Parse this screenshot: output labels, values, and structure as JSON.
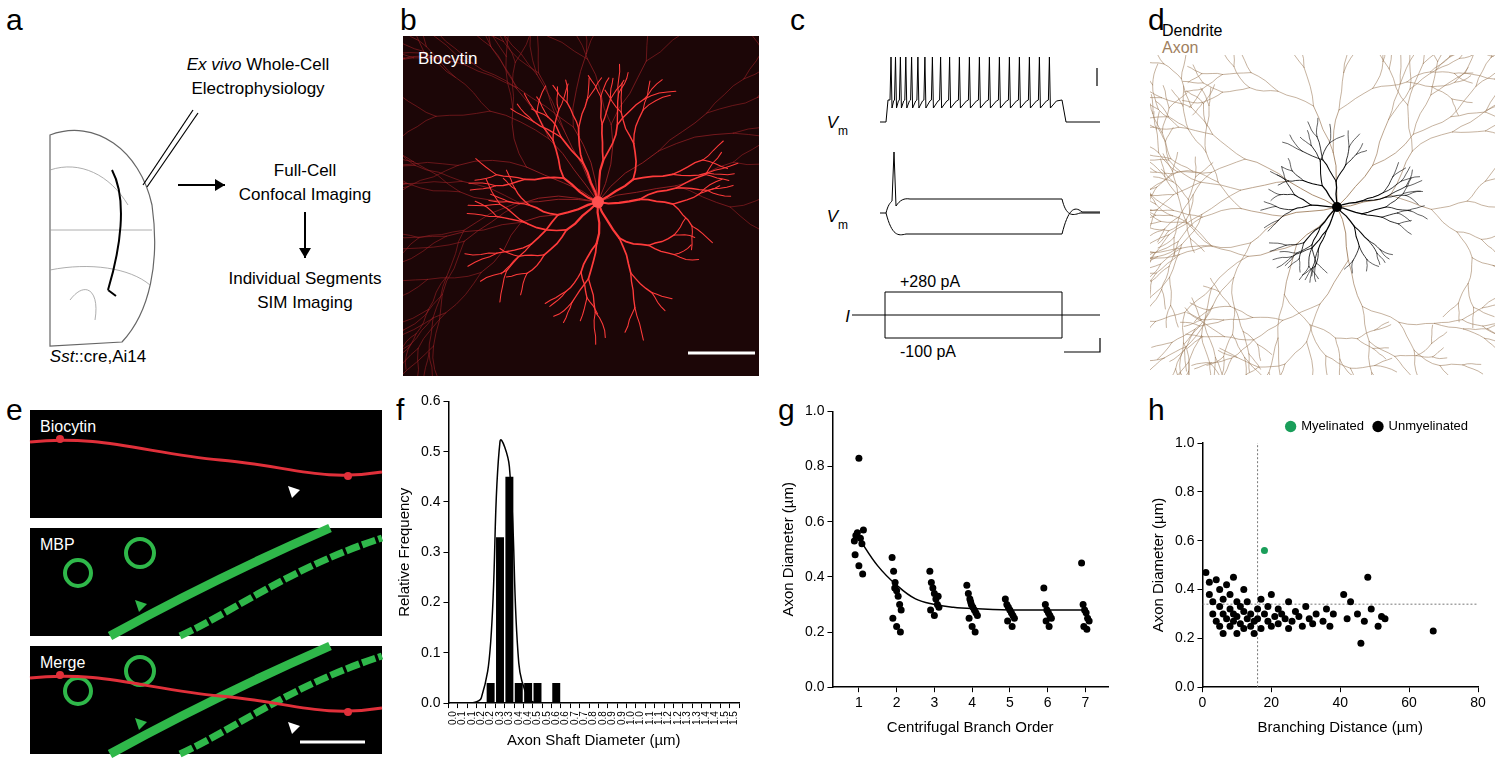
{
  "panel_labels": [
    "a",
    "b",
    "c",
    "d",
    "e",
    "f",
    "g",
    "h"
  ],
  "panel_a": {
    "lines": [
      [
        {
          "text": "Ex vivo",
          "italic": true
        },
        {
          "text": " Whole-Cell"
        }
      ],
      [
        {
          "text": "Electrophysiology"
        }
      ],
      [
        {
          "text": "Full-Cell"
        }
      ],
      [
        {
          "text": "Confocal Imaging"
        }
      ],
      [
        {
          "text": "Individual Segments"
        }
      ],
      [
        {
          "text": "SIM Imaging"
        }
      ],
      [
        {
          "text": "Sst",
          "italic": true
        },
        {
          "text": "::cre,Ai14"
        }
      ]
    ]
  },
  "panel_b": {
    "label": "Biocytin"
  },
  "panel_c": {
    "traces": [
      [
        {
          "text": "V",
          "italic": true
        },
        {
          "text": "m",
          "sub": true
        }
      ],
      [
        {
          "text": "V",
          "italic": true
        },
        {
          "text": "m",
          "sub": true
        }
      ],
      [
        {
          "text": "I",
          "italic": true
        }
      ]
    ],
    "steps": [
      "+280 pA",
      "-100 pA"
    ]
  },
  "panel_d": {
    "legend": [
      {
        "name": "Dendrite",
        "color": "#000000"
      },
      {
        "name": "Axon",
        "color": "#a08060"
      }
    ]
  },
  "panel_e": {
    "labels": [
      "Biocytin",
      "MBP",
      "Merge"
    ]
  },
  "chart_data": [
    {
      "type": "bar",
      "x_label": "Axon Shaft Diameter (µm)",
      "y_label": "Relative Frequency",
      "categories": [
        "0.0",
        "0.1",
        "0.1",
        "0.2",
        "0.2",
        "0.3",
        "0.3",
        "0.4",
        "0.4",
        "0.5",
        "0.5",
        "0.6",
        "0.6",
        "0.7",
        "0.7",
        "0.8",
        "0.8",
        "0.9",
        "0.9",
        "1.0",
        "1.0",
        "1.1",
        "1.1",
        "1.2",
        "1.2",
        "1.3",
        "1.3",
        "1.4",
        "1.4",
        "1.5",
        "1.5"
      ],
      "series": [
        {
          "type": "bar",
          "color": "#000000",
          "values": [
            0,
            0,
            0,
            0,
            0.04,
            0.33,
            0.45,
            0.04,
            0.04,
            0.04,
            0,
            0.04,
            0,
            0,
            0,
            0,
            0,
            0,
            0,
            0,
            0,
            0,
            0,
            0,
            0,
            0,
            0,
            0,
            0,
            0,
            0
          ]
        },
        {
          "type": "line",
          "color": "#000000",
          "values": [
            0,
            0,
            0,
            0.01,
            0.12,
            0.52,
            0.47,
            0.08,
            0.01,
            0,
            0,
            0,
            0,
            0,
            0,
            0,
            0,
            0,
            0,
            0,
            0,
            0,
            0,
            0,
            0,
            0,
            0,
            0,
            0,
            0,
            0
          ]
        }
      ],
      "ylim": [
        0,
        0.6
      ],
      "yticks": [
        {
          "value": 0,
          "label": "0.0"
        },
        0.1,
        0.2,
        0.3,
        0.4,
        0.5,
        0.6
      ],
      "grid": false
    },
    {
      "type": "scatter",
      "x_label": "Centrifugal Branch Order",
      "y_label": "Axon Diameter (µm)",
      "series": [
        {
          "type": "scatter",
          "color": "#000000",
          "marker": "circle",
          "x": [
            0.88,
            0.92,
            0.96,
            1.0,
            1.04,
            1.08,
            1.12,
            0.9,
            1.0,
            1.1,
            1.88,
            1.92,
            1.96,
            2.0,
            2.04,
            2.08,
            2.12,
            1.9,
            2.0,
            2.1,
            1.95,
            2.88,
            2.92,
            2.96,
            3.0,
            3.04,
            3.08,
            3.12,
            2.9,
            3.0,
            3.1,
            3.86,
            3.9,
            3.94,
            3.98,
            4.02,
            4.06,
            4.1,
            4.14,
            3.92,
            4.0,
            4.08,
            3.96,
            4.88,
            4.92,
            4.96,
            5.0,
            5.04,
            5.08,
            5.12,
            4.94,
            5.06,
            5.9,
            5.94,
            5.98,
            6.02,
            6.06,
            6.1,
            5.96,
            6.04,
            6.9,
            6.94,
            6.98,
            7.02,
            7.06,
            7.1,
            6.96,
            7.04
          ],
          "values": [
            0.53,
            0.55,
            0.56,
            0.83,
            0.54,
            0.52,
            0.57,
            0.48,
            0.44,
            0.41,
            0.47,
            0.42,
            0.38,
            0.35,
            0.33,
            0.3,
            0.28,
            0.25,
            0.22,
            0.2,
            0.36,
            0.42,
            0.38,
            0.36,
            0.34,
            0.32,
            0.3,
            0.29,
            0.28,
            0.26,
            0.33,
            0.37,
            0.34,
            0.32,
            0.3,
            0.29,
            0.28,
            0.27,
            0.26,
            0.25,
            0.22,
            0.2,
            0.31,
            0.32,
            0.3,
            0.29,
            0.28,
            0.27,
            0.26,
            0.25,
            0.24,
            0.22,
            0.36,
            0.3,
            0.28,
            0.27,
            0.26,
            0.25,
            0.24,
            0.22,
            0.45,
            0.3,
            0.28,
            0.27,
            0.25,
            0.24,
            0.22,
            0.21
          ]
        },
        {
          "type": "line",
          "color": "#000000",
          "x": [
            1,
            1.5,
            2,
            2.5,
            3,
            3.5,
            4,
            5,
            6,
            7
          ],
          "values": [
            0.54,
            0.44,
            0.37,
            0.32,
            0.3,
            0.29,
            0.285,
            0.28,
            0.28,
            0.28
          ]
        }
      ],
      "xlim": [
        0.3,
        7.6
      ],
      "xticks": [
        1,
        2,
        3,
        4,
        5,
        6,
        7
      ],
      "ylim": [
        0,
        1
      ],
      "yticks": [
        {
          "value": 0,
          "label": "0.0"
        },
        0.2,
        0.4,
        0.6,
        0.8,
        {
          "value": 1,
          "label": "1.0"
        }
      ],
      "grid": false
    },
    {
      "type": "scatter",
      "x_label": "Branching Distance (µm)",
      "y_label": "Axon Diameter (µm)",
      "legend": "upper right",
      "series": [
        {
          "name": "Myelinated",
          "color": "#1a9e5a",
          "marker": "circle",
          "x": [
            18
          ],
          "values": [
            0.56
          ]
        },
        {
          "name": "Unmyelinated",
          "color": "#000000",
          "marker": "circle",
          "x": [
            1,
            2,
            2,
            3,
            3,
            4,
            4,
            5,
            5,
            5,
            6,
            6,
            6,
            7,
            7,
            8,
            8,
            8,
            9,
            9,
            9,
            10,
            10,
            10,
            11,
            11,
            12,
            12,
            12,
            13,
            13,
            14,
            14,
            15,
            15,
            16,
            16,
            17,
            17,
            18,
            19,
            19,
            20,
            20,
            21,
            22,
            22,
            23,
            24,
            25,
            25,
            26,
            27,
            28,
            29,
            30,
            31,
            32,
            33,
            35,
            36,
            37,
            38,
            41,
            42,
            43,
            45,
            46,
            47,
            48,
            49,
            51,
            52,
            53,
            67
          ],
          "values": [
            0.47,
            0.43,
            0.38,
            0.35,
            0.3,
            0.44,
            0.27,
            0.4,
            0.33,
            0.25,
            0.36,
            0.3,
            0.22,
            0.42,
            0.28,
            0.38,
            0.32,
            0.25,
            0.45,
            0.3,
            0.27,
            0.35,
            0.29,
            0.22,
            0.33,
            0.26,
            0.4,
            0.31,
            0.24,
            0.28,
            0.35,
            0.3,
            0.25,
            0.27,
            0.22,
            0.32,
            0.28,
            0.36,
            0.24,
            0.3,
            0.27,
            0.33,
            0.38,
            0.25,
            0.29,
            0.26,
            0.32,
            0.3,
            0.28,
            0.35,
            0.24,
            0.27,
            0.31,
            0.29,
            0.25,
            0.33,
            0.28,
            0.26,
            0.3,
            0.27,
            0.32,
            0.25,
            0.3,
            0.38,
            0.28,
            0.35,
            0.3,
            0.18,
            0.27,
            0.45,
            0.32,
            0.25,
            0.29,
            0.28,
            0.23
          ]
        }
      ],
      "vline": 16,
      "hline": 0.34,
      "xlim": [
        0,
        80
      ],
      "xticks": [
        0,
        20,
        40,
        60,
        80
      ],
      "ylim": [
        0,
        1
      ],
      "yticks": [
        {
          "value": 0,
          "label": "0.0"
        },
        0.2,
        0.4,
        0.6,
        0.8,
        {
          "value": 1,
          "label": "1.0"
        }
      ],
      "grid": false
    }
  ]
}
